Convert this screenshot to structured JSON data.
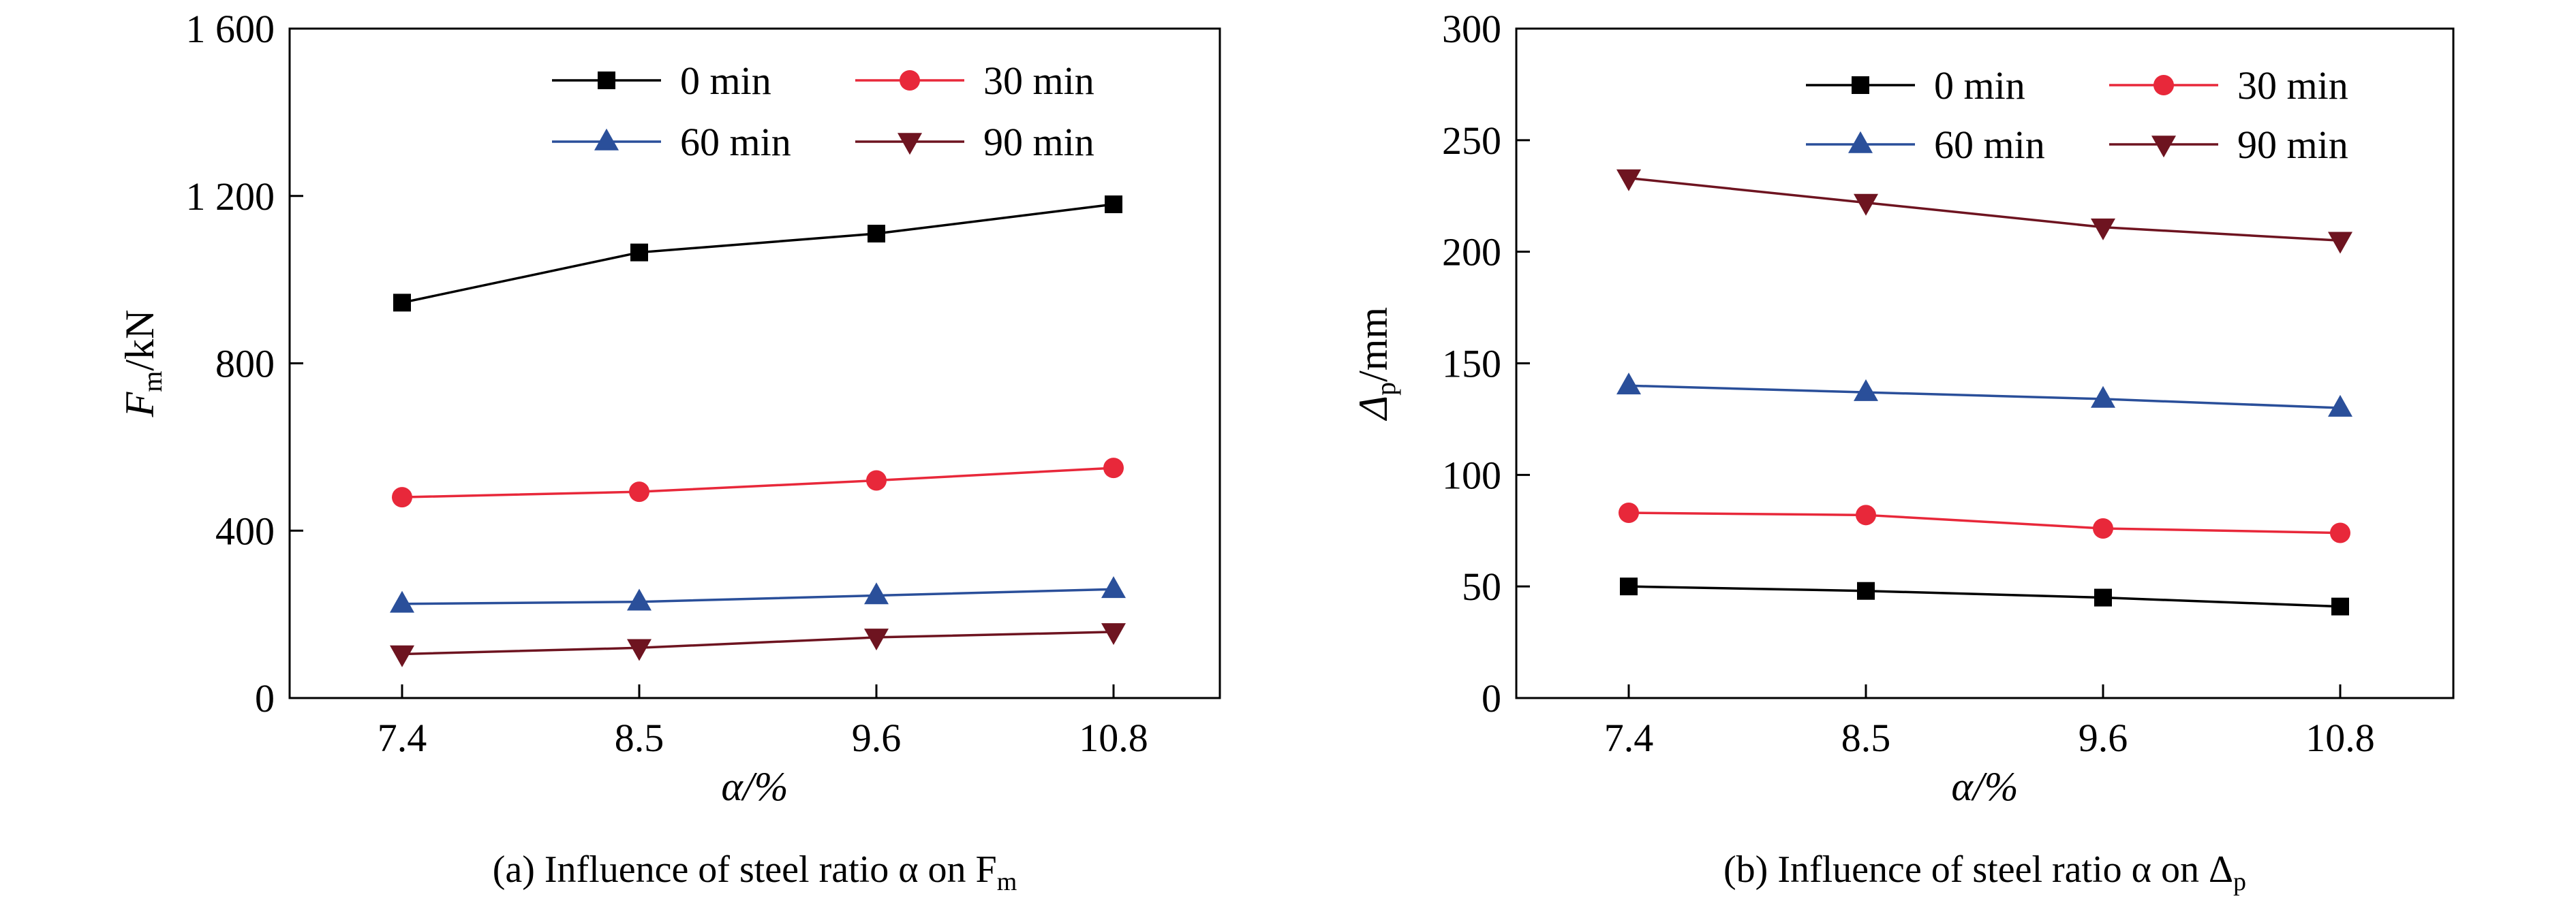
{
  "chart_data": [
    {
      "type": "line",
      "caption": "(a) Influence of steel ratio α on F",
      "caption_sub": "m",
      "xlabel": "α/%",
      "ylabel": "F",
      "ylabel_sub": "m",
      "ylabel_unit": "/kN",
      "categories": [
        "7.4",
        "8.5",
        "9.6",
        "10.8"
      ],
      "ylim": [
        0,
        1600
      ],
      "yticks": [
        0,
        400,
        800,
        1200,
        1600
      ],
      "ytick_labels": [
        "0",
        "400",
        "800",
        "1 200",
        "1 600"
      ],
      "legend_position": "top-right",
      "series": [
        {
          "name": "0 min",
          "values": [
            945,
            1065,
            1110,
            1180
          ],
          "color": "#000000",
          "marker": "square"
        },
        {
          "name": "30 min",
          "values": [
            480,
            493,
            520,
            550
          ],
          "color": "#e8283a",
          "marker": "circle"
        },
        {
          "name": "60 min",
          "values": [
            225,
            230,
            245,
            260
          ],
          "color": "#2a4f9a",
          "marker": "triangle-up"
        },
        {
          "name": "90 min",
          "values": [
            105,
            120,
            145,
            158
          ],
          "color": "#6e1420",
          "marker": "triangle-down"
        }
      ]
    },
    {
      "type": "line",
      "caption": "(b) Influence of steel ratio α on Δ",
      "caption_sub": "p",
      "xlabel": "α/%",
      "ylabel": "Δ",
      "ylabel_sub": "p",
      "ylabel_unit": "/mm",
      "categories": [
        "7.4",
        "8.5",
        "9.6",
        "10.8"
      ],
      "ylim": [
        0,
        300
      ],
      "yticks": [
        0,
        50,
        100,
        150,
        200,
        250,
        300
      ],
      "ytick_labels": [
        "0",
        "50",
        "100",
        "150",
        "200",
        "250",
        "300"
      ],
      "legend_position": "top-right",
      "series": [
        {
          "name": "0 min",
          "values": [
            50,
            48,
            45,
            41
          ],
          "color": "#000000",
          "marker": "square"
        },
        {
          "name": "30 min",
          "values": [
            83,
            82,
            76,
            74
          ],
          "color": "#e8283a",
          "marker": "circle"
        },
        {
          "name": "60 min",
          "values": [
            140,
            137,
            134,
            130
          ],
          "color": "#2a4f9a",
          "marker": "triangle-up"
        },
        {
          "name": "90 min",
          "values": [
            233,
            222,
            211,
            205
          ],
          "color": "#6e1420",
          "marker": "triangle-down"
        }
      ]
    }
  ]
}
